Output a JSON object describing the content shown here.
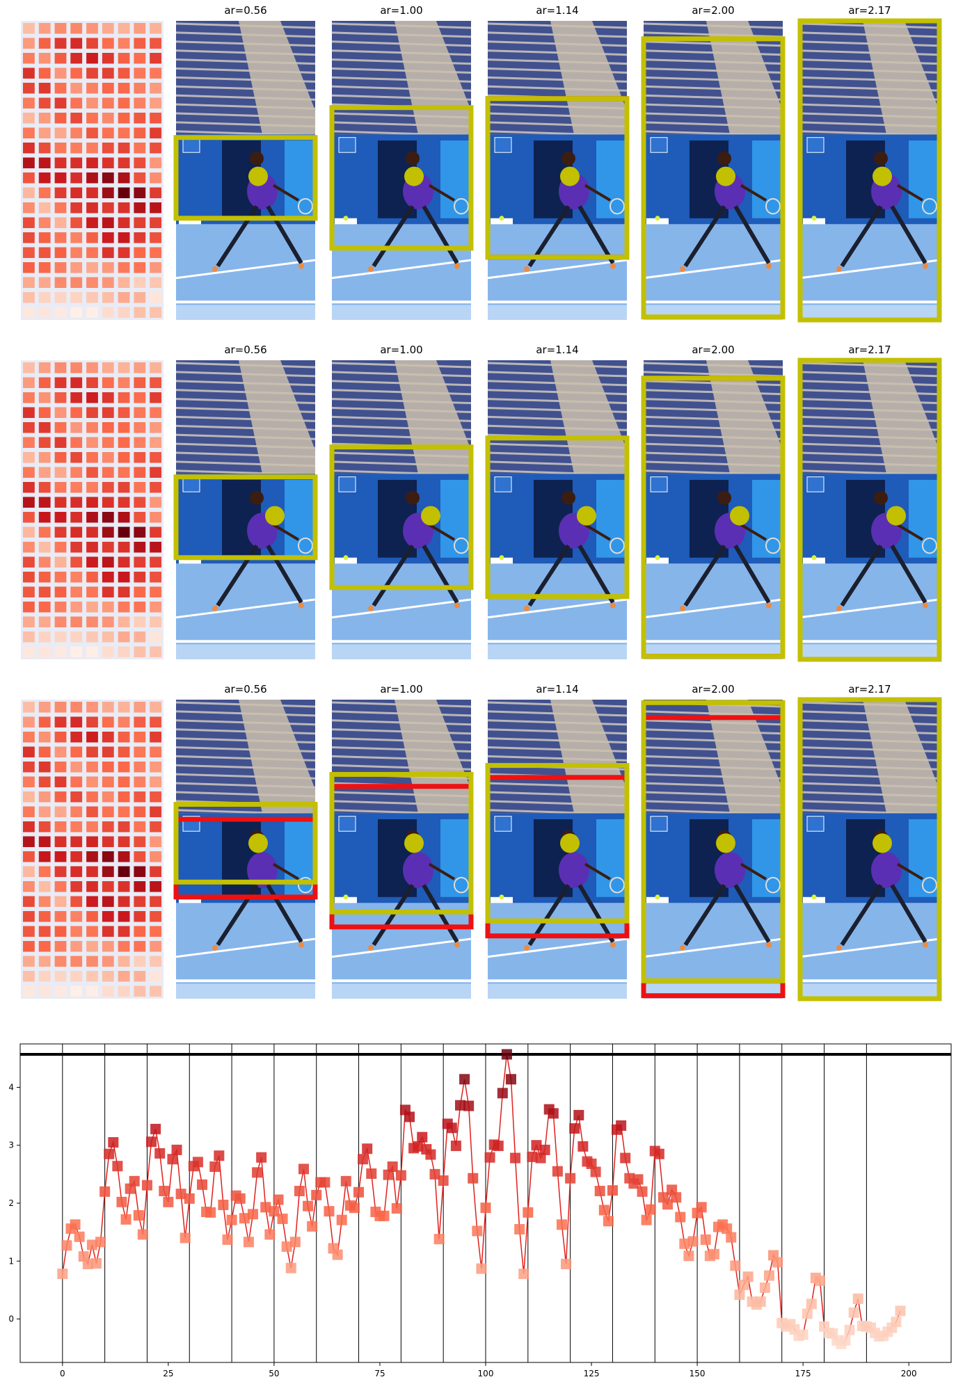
{
  "figure": {
    "rows": [
      {
        "panels": [
          {
            "title": "ar=0.56",
            "yellow_box": [
              0.0,
              0.39,
              1.0,
              0.66
            ],
            "red_box": null,
            "dot": [
              0.59,
              0.52
            ]
          },
          {
            "title": "ar=1.00",
            "yellow_box": [
              0.0,
              0.29,
              1.0,
              0.76
            ],
            "red_box": null,
            "dot": [
              0.59,
              0.52
            ]
          },
          {
            "title": "ar=1.14",
            "yellow_box": [
              0.0,
              0.26,
              1.0,
              0.79
            ],
            "red_box": [
              0.0,
              0.26,
              1.0,
              0.79
            ],
            "dot": [
              0.59,
              0.52
            ]
          },
          {
            "title": "ar=2.00",
            "yellow_box": [
              0.0,
              0.06,
              1.0,
              0.99
            ],
            "red_box": null,
            "dot": [
              0.59,
              0.52
            ]
          },
          {
            "title": "ar=2.17",
            "yellow_box": [
              0.0,
              0.0,
              1.0,
              1.0
            ],
            "red_box": null,
            "dot": [
              0.59,
              0.52
            ]
          }
        ]
      },
      {
        "panels": [
          {
            "title": "ar=0.56",
            "yellow_box": [
              0.0,
              0.39,
              1.0,
              0.66
            ],
            "red_box": null,
            "dot": [
              0.71,
              0.52
            ]
          },
          {
            "title": "ar=1.00",
            "yellow_box": [
              0.0,
              0.29,
              1.0,
              0.76
            ],
            "red_box": null,
            "dot": [
              0.71,
              0.52
            ]
          },
          {
            "title": "ar=1.14",
            "yellow_box": [
              0.0,
              0.26,
              1.0,
              0.79
            ],
            "red_box": null,
            "dot": [
              0.71,
              0.52
            ]
          },
          {
            "title": "ar=2.00",
            "yellow_box": [
              0.0,
              0.06,
              1.0,
              0.99
            ],
            "red_box": [
              0.0,
              0.06,
              1.0,
              0.99
            ],
            "dot": [
              0.69,
              0.52
            ]
          },
          {
            "title": "ar=2.17",
            "yellow_box": [
              0.0,
              0.0,
              1.0,
              1.0
            ],
            "red_box": null,
            "dot": [
              0.69,
              0.52
            ]
          }
        ]
      },
      {
        "panels": [
          {
            "title": "ar=0.56",
            "yellow_box": [
              0.0,
              0.35,
              1.0,
              0.61
            ],
            "red_box": [
              0.0,
              0.4,
              1.0,
              0.66
            ],
            "dot": [
              0.59,
              0.48
            ]
          },
          {
            "title": "ar=1.00",
            "yellow_box": [
              0.0,
              0.25,
              1.0,
              0.71
            ],
            "red_box": [
              0.0,
              0.29,
              1.0,
              0.76
            ],
            "dot": [
              0.59,
              0.48
            ]
          },
          {
            "title": "ar=1.14",
            "yellow_box": [
              0.0,
              0.22,
              1.0,
              0.74
            ],
            "red_box": [
              0.0,
              0.26,
              1.0,
              0.79
            ],
            "dot": [
              0.59,
              0.48
            ]
          },
          {
            "title": "ar=2.00",
            "yellow_box": [
              0.0,
              0.01,
              1.0,
              0.94
            ],
            "red_box": [
              0.0,
              0.06,
              1.0,
              0.99
            ],
            "dot": [
              0.59,
              0.48
            ]
          },
          {
            "title": "ar=2.17",
            "yellow_box": [
              0.0,
              0.0,
              1.0,
              1.0
            ],
            "red_box": null,
            "dot": [
              0.59,
              0.48
            ]
          }
        ]
      }
    ],
    "colors": {
      "box": "#c2c000",
      "crop": "#ee1111",
      "marker_high": "#7a0a12",
      "marker_low": "#fde0d2"
    }
  },
  "chart_data": {
    "type": "line",
    "title": "",
    "xlabel": "",
    "ylabel": "",
    "xlim": [
      -10,
      210
    ],
    "ylim": [
      -0.75,
      4.75
    ],
    "xticks": [
      "0",
      "25",
      "50",
      "75",
      "100",
      "125",
      "150",
      "175",
      "200"
    ],
    "yticks": [
      "0",
      "1",
      "2",
      "3",
      "4"
    ],
    "hline": 4.57,
    "vlines": [
      0,
      10,
      20,
      30,
      40,
      50,
      60,
      70,
      80,
      90,
      100,
      110,
      120,
      130,
      140,
      150,
      160,
      170,
      180,
      190
    ],
    "grid": false,
    "series": [
      {
        "values": [
          0.78,
          1.27,
          1.56,
          1.63,
          1.42,
          1.08,
          0.95,
          1.28,
          0.96,
          1.33,
          2.2,
          2.85,
          3.05,
          2.64,
          2.02,
          1.72,
          2.25,
          2.38,
          1.79,
          1.46,
          2.31,
          3.06,
          3.28,
          2.86,
          2.21,
          2.02,
          2.76,
          2.92,
          2.16,
          1.4,
          2.08,
          2.64,
          2.71,
          2.32,
          1.85,
          1.84,
          2.63,
          2.82,
          1.97,
          1.37,
          1.71,
          2.13,
          2.08,
          1.74,
          1.33,
          1.81,
          2.53,
          2.79,
          1.93,
          1.46,
          1.86,
          2.06,
          1.73,
          1.25,
          0.88,
          1.33,
          2.21,
          2.59,
          1.95,
          1.6,
          2.14,
          2.36,
          2.36,
          1.86,
          1.22,
          1.11,
          1.71,
          2.38,
          1.96,
          1.92,
          2.19,
          2.76,
          2.94,
          2.51,
          1.85,
          1.78,
          1.78,
          2.49,
          2.63,
          1.91,
          2.48,
          3.61,
          3.49,
          2.95,
          2.98,
          3.14,
          2.93,
          2.84,
          2.5,
          1.38,
          2.39,
          3.37,
          3.3,
          2.99,
          3.69,
          4.14,
          3.68,
          2.43,
          1.52,
          0.87,
          1.92,
          2.79,
          3.01,
          2.99,
          3.9,
          4.57,
          4.14,
          2.78,
          1.55,
          0.78,
          1.84,
          2.8,
          3.0,
          2.78,
          2.92,
          3.62,
          3.55,
          2.55,
          1.63,
          0.95,
          2.43,
          3.29,
          3.52,
          2.98,
          2.72,
          2.68,
          2.54,
          2.21,
          1.88,
          1.69,
          2.22,
          3.27,
          3.34,
          2.78,
          2.43,
          2.34,
          2.41,
          2.2,
          1.71,
          1.89,
          2.9,
          2.85,
          2.1,
          1.98,
          2.23,
          2.1,
          1.76,
          1.3,
          1.09,
          1.34,
          1.83,
          1.93,
          1.37,
          1.09,
          1.12,
          1.59,
          1.63,
          1.56,
          1.41,
          0.92,
          0.42,
          0.59,
          0.73,
          0.3,
          0.25,
          0.3,
          0.54,
          0.75,
          1.1,
          0.98,
          -0.07,
          -0.13,
          -0.09,
          -0.18,
          -0.29,
          -0.27,
          0.09,
          0.26,
          0.71,
          0.66,
          -0.13,
          -0.24,
          -0.25,
          -0.37,
          -0.43,
          -0.37,
          -0.19,
          0.11,
          0.35,
          -0.12,
          -0.13,
          -0.15,
          -0.24,
          -0.3,
          -0.29,
          -0.22,
          -0.15,
          -0.05,
          0.14
        ]
      }
    ]
  }
}
